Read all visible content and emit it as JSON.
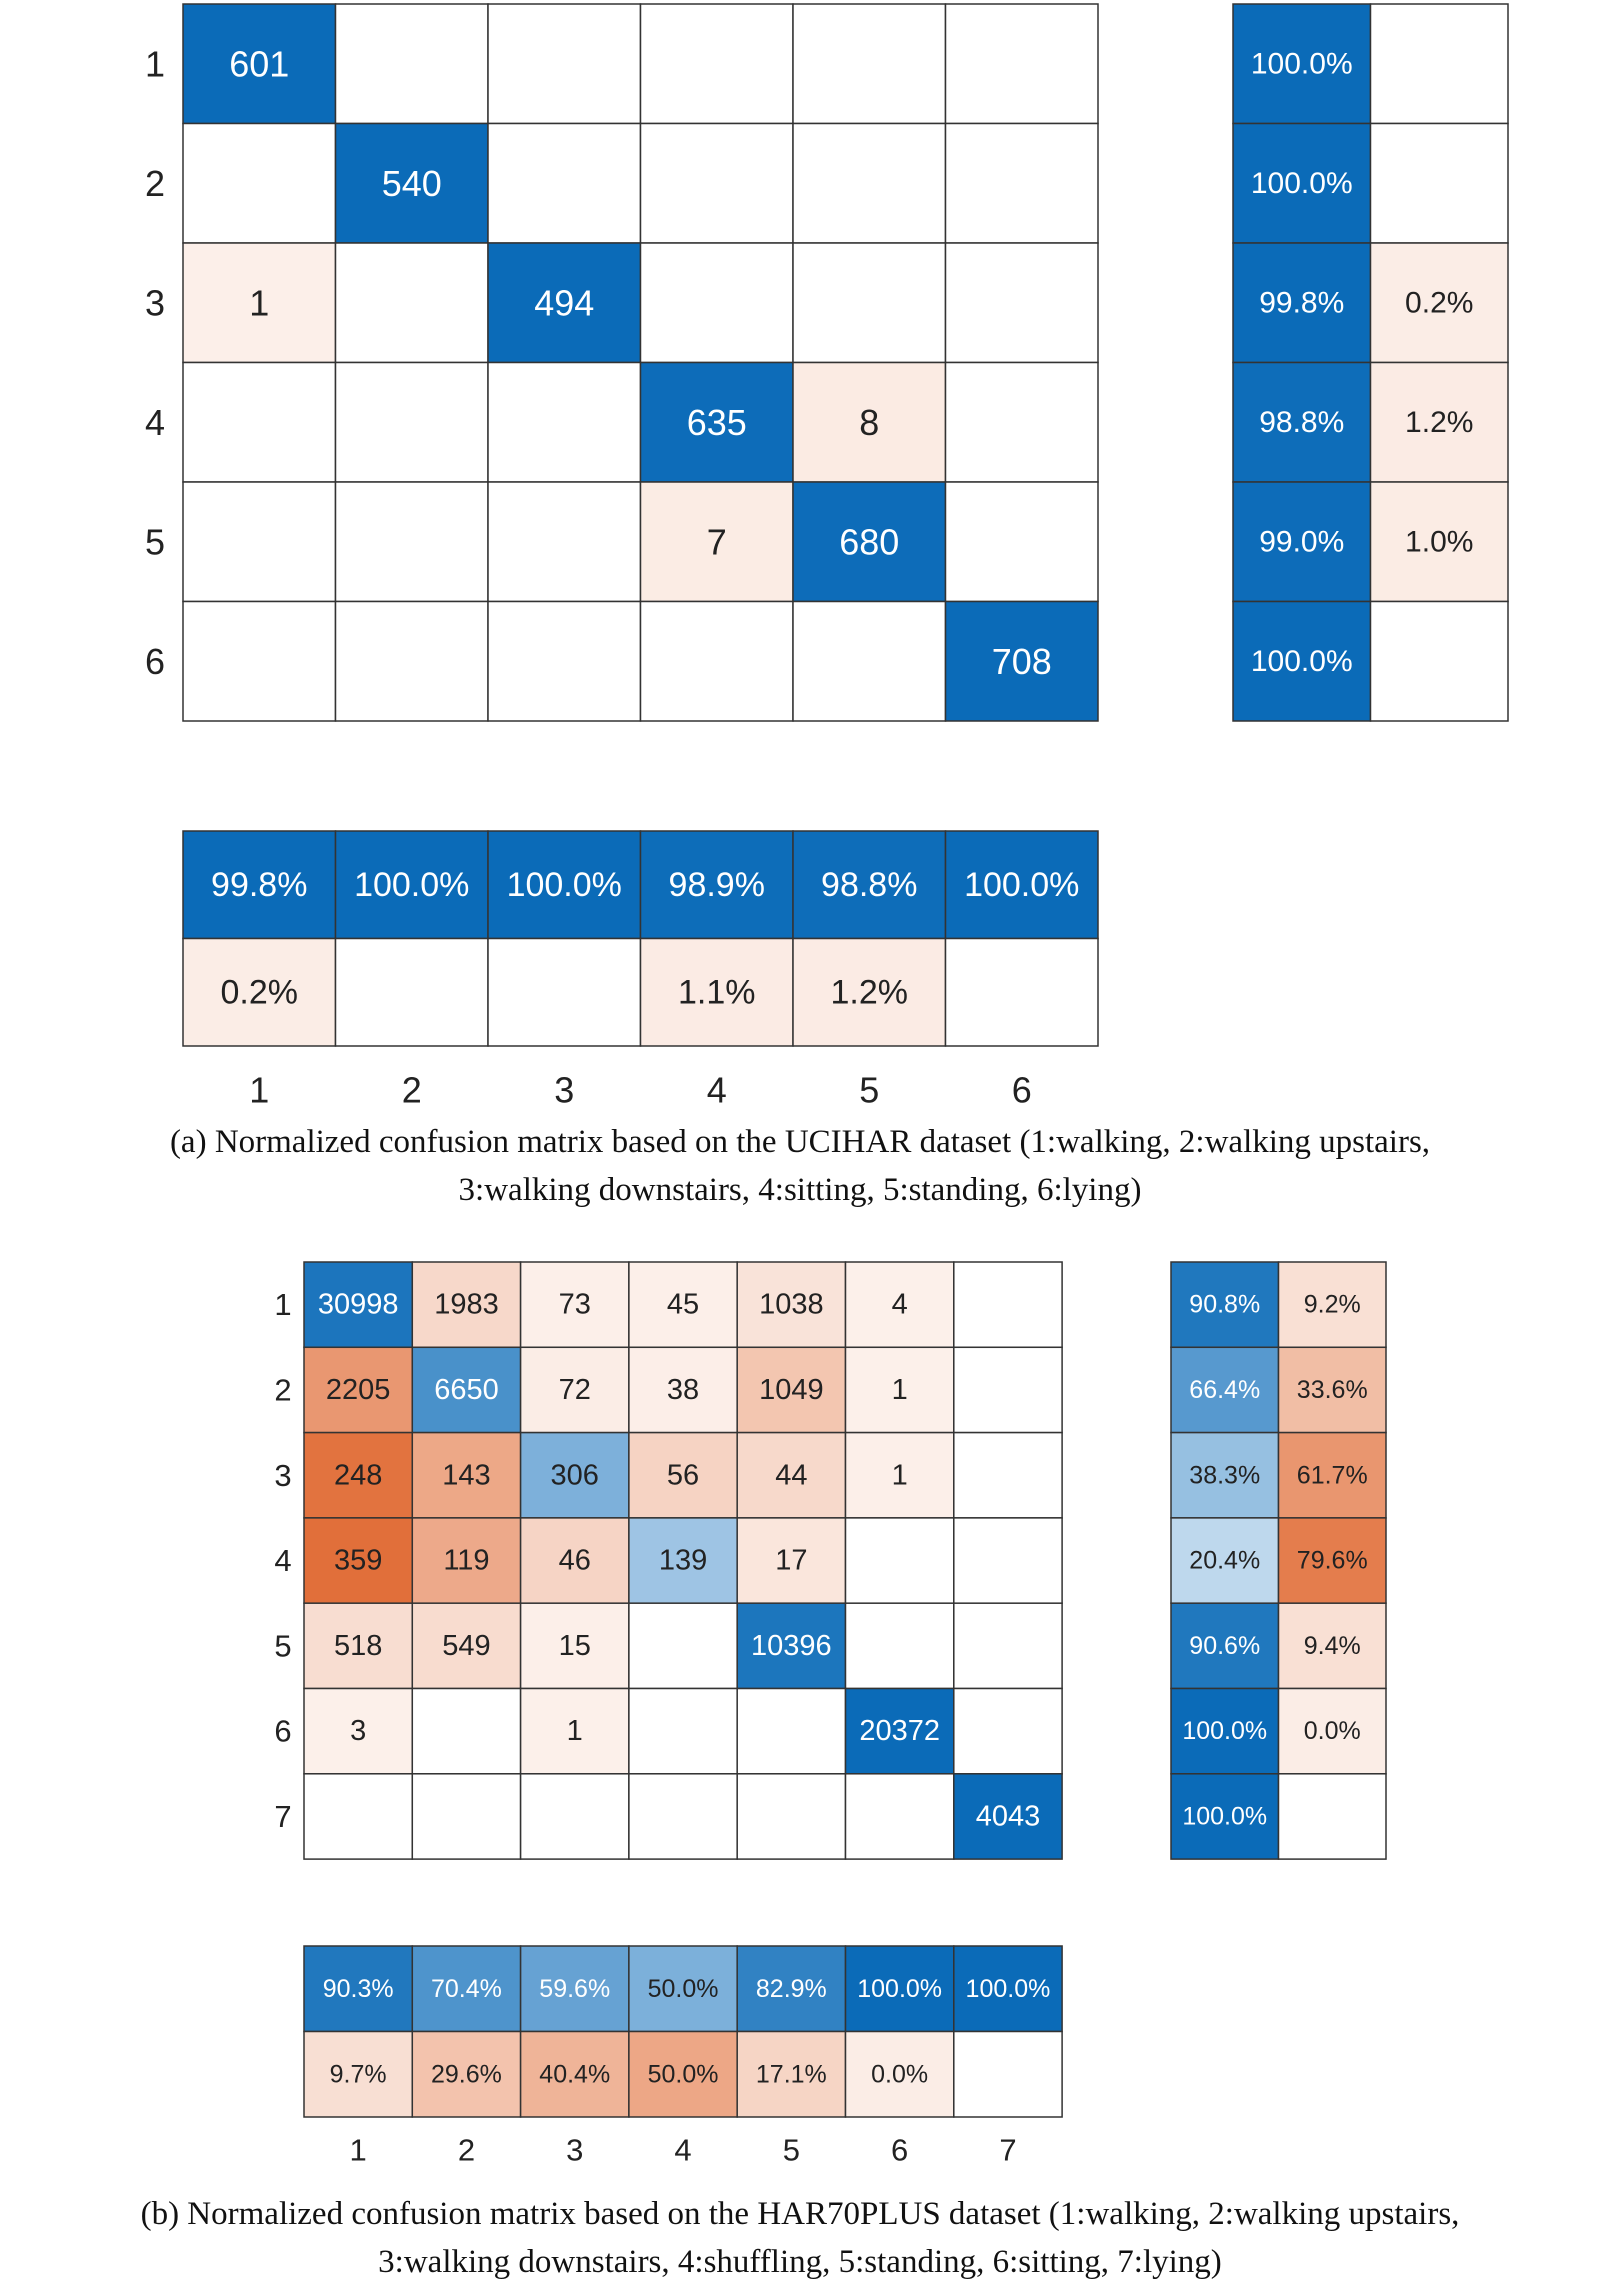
{
  "chart_data": [
    {
      "type": "heatmap",
      "id": "a",
      "title": "Normalized confusion matrix based on the UCIHAR dataset",
      "caption_lines": [
        "(a)  Normalized confusion matrix based on the UCIHAR dataset (1:walking, 2:walking upstairs,",
        "3:walking downstairs, 4:sitting, 5:standing, 6:lying)"
      ],
      "classes": [
        "1",
        "2",
        "3",
        "4",
        "5",
        "6"
      ],
      "matrix": [
        [
          601,
          0,
          0,
          0,
          0,
          0
        ],
        [
          0,
          540,
          0,
          0,
          0,
          0
        ],
        [
          1,
          0,
          494,
          0,
          0,
          0
        ],
        [
          0,
          0,
          0,
          635,
          8,
          0
        ],
        [
          0,
          0,
          0,
          7,
          680,
          0
        ],
        [
          0,
          0,
          0,
          0,
          0,
          708
        ]
      ],
      "row_summary": [
        [
          "100.0%",
          ""
        ],
        [
          "100.0%",
          ""
        ],
        [
          "99.8%",
          "0.2%"
        ],
        [
          "98.8%",
          "1.2%"
        ],
        [
          "99.0%",
          "1.0%"
        ],
        [
          "100.0%",
          ""
        ]
      ],
      "column_summary": [
        [
          "99.8%",
          "100.0%",
          "100.0%",
          "98.9%",
          "98.8%",
          "100.0%"
        ],
        [
          "0.2%",
          "",
          "",
          "1.1%",
          "1.2%",
          ""
        ]
      ]
    },
    {
      "type": "heatmap",
      "id": "b",
      "title": "Normalized confusion matrix based on the HAR70PLUS dataset",
      "caption_lines": [
        "(b)  Normalized confusion matrix based on the HAR70PLUS dataset (1:walking, 2:walking upstairs,",
        "3:walking downstairs, 4:shuffling, 5:standing, 6:sitting, 7:lying)"
      ],
      "classes": [
        "1",
        "2",
        "3",
        "4",
        "5",
        "6",
        "7"
      ],
      "matrix": [
        [
          30998,
          1983,
          73,
          45,
          1038,
          4,
          0
        ],
        [
          2205,
          6650,
          72,
          38,
          1049,
          1,
          0
        ],
        [
          248,
          143,
          306,
          56,
          44,
          1,
          0
        ],
        [
          359,
          119,
          46,
          139,
          17,
          0,
          0
        ],
        [
          518,
          549,
          15,
          0,
          10396,
          0,
          0
        ],
        [
          3,
          0,
          1,
          0,
          0,
          20372,
          0
        ],
        [
          0,
          0,
          0,
          0,
          0,
          0,
          4043
        ]
      ],
      "row_summary": [
        [
          "90.8%",
          "9.2%"
        ],
        [
          "66.4%",
          "33.6%"
        ],
        [
          "38.3%",
          "61.7%"
        ],
        [
          "20.4%",
          "79.6%"
        ],
        [
          "90.6%",
          "9.4%"
        ],
        [
          "100.0%",
          "0.0%"
        ],
        [
          "100.0%",
          ""
        ]
      ],
      "column_summary": [
        [
          "90.3%",
          "70.4%",
          "59.6%",
          "50.0%",
          "82.9%",
          "100.0%",
          "100.0%"
        ],
        [
          "9.7%",
          "29.6%",
          "40.4%",
          "50.0%",
          "17.1%",
          "0.0%",
          ""
        ]
      ]
    }
  ],
  "colors": {
    "blue_strong": "#0b6bb8",
    "blue_light": "#ecf4fb",
    "orange_strong": "#e16f3a",
    "orange_light": "#fdf5f1",
    "border": "#333333",
    "text_dark": "#222222",
    "text_light": "#ffffff"
  }
}
